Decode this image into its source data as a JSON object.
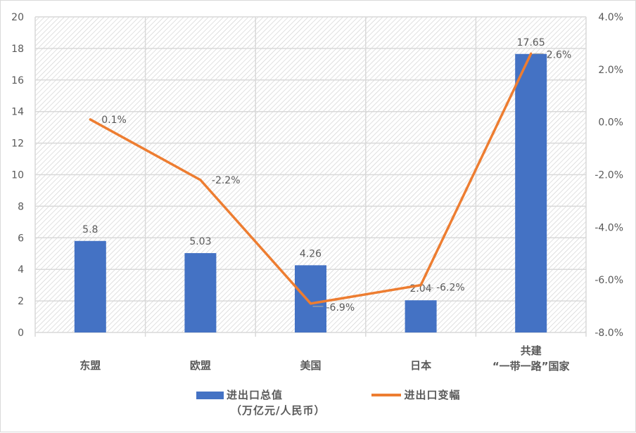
{
  "chart_data": {
    "type": "bar+line",
    "categories": [
      "东盟",
      "欧盟",
      "美国",
      "日本",
      "共建\n“一带一路”国家"
    ],
    "category_lines": [
      [
        "东盟"
      ],
      [
        "欧盟"
      ],
      [
        "美国"
      ],
      [
        "日本"
      ],
      [
        "共建",
        "“一带一路”国家"
      ]
    ],
    "series": [
      {
        "name": "进出口总值（万亿元/人民币）",
        "type": "bar",
        "axis": "left",
        "color": "#4472c4",
        "values": [
          5.8,
          5.03,
          4.26,
          2.04,
          17.65
        ],
        "labels": [
          "5.8",
          "5.03",
          "4.26",
          "2.04",
          "17.65"
        ]
      },
      {
        "name": "进出口变幅",
        "type": "line",
        "axis": "right",
        "color": "#ed7d31",
        "values": [
          0.1,
          -2.2,
          -6.9,
          -6.2,
          2.6
        ],
        "labels": [
          "0.1%",
          "-2.2%",
          "-6.9%",
          "-6.2%",
          "2.6%"
        ]
      }
    ],
    "left_axis": {
      "min": 0,
      "max": 20,
      "step": 2,
      "ticks": [
        "0",
        "2",
        "4",
        "6",
        "8",
        "10",
        "12",
        "14",
        "16",
        "18",
        "20"
      ]
    },
    "right_axis": {
      "min": -8.0,
      "max": 4.0,
      "step": 2.0,
      "ticks": [
        "-8.0%",
        "-6.0%",
        "-4.0%",
        "-2.0%",
        "0.0%",
        "2.0%",
        "4.0%"
      ]
    },
    "title": "",
    "xlabel": "",
    "ylabel": "",
    "grid": true,
    "legend_position": "bottom"
  },
  "legend": {
    "bar_label_line1": "进出口总值",
    "bar_label_line2": "（万亿元/人民币）",
    "line_label": "进出口变幅"
  }
}
